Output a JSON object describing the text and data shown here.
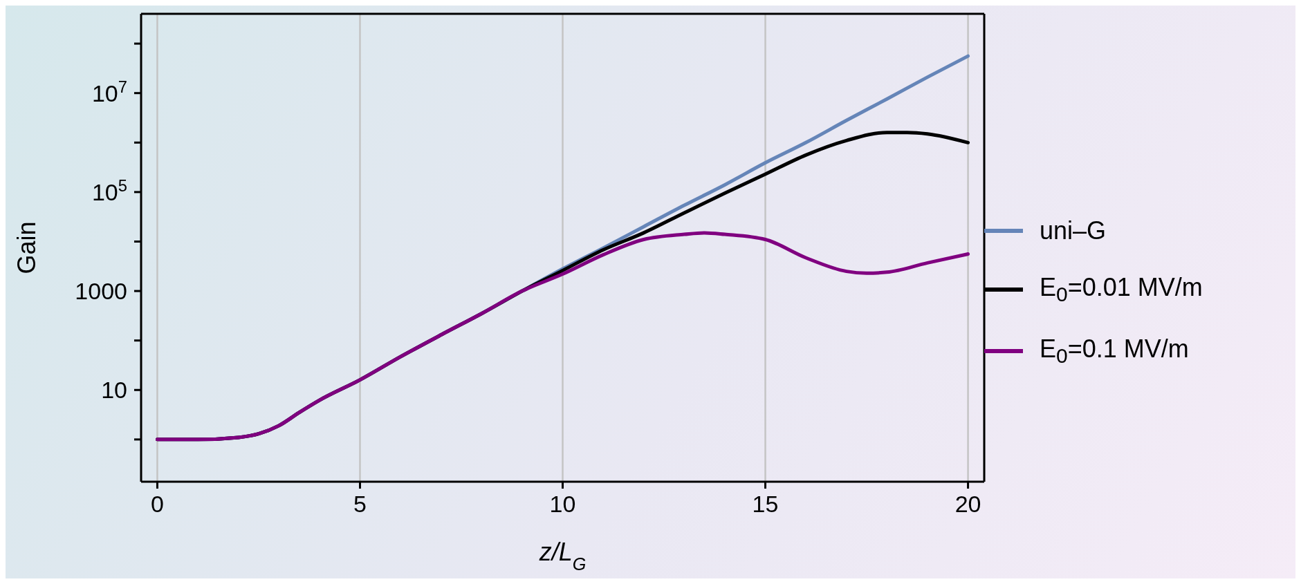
{
  "chart_data": {
    "type": "line",
    "xlabel": "z/L$_{G}$",
    "ylabel": "Gain",
    "log": "y",
    "grid": "x",
    "legend": "right",
    "marker": "none",
    "line_style": "solid",
    "xlim": [
      -0.4,
      20.4
    ],
    "xticks": [
      0,
      5,
      10,
      15,
      20
    ],
    "ylim": [
      0.14,
      400000000
    ],
    "yticks": [
      {
        "value": 1,
        "label": null
      },
      {
        "value": 10,
        "label": "10"
      },
      {
        "value": 100,
        "label": null
      },
      {
        "value": 1000,
        "label": "1000"
      },
      {
        "value": 10000,
        "label": null
      },
      {
        "value": 100000,
        "label": "10$^{5}$"
      },
      {
        "value": 1000000,
        "label": null
      },
      {
        "value": 10000000,
        "label": "10$^{7}$"
      },
      {
        "value": 100000000,
        "label": null
      }
    ],
    "series": [
      {
        "name": "uni–G",
        "color": "#6585b8",
        "x": [
          0,
          1,
          2,
          2.5,
          3,
          3.5,
          4,
          5,
          6,
          7,
          8,
          9,
          10,
          11,
          12,
          13,
          14,
          15,
          16,
          17,
          18,
          19,
          20
        ],
        "values": [
          1,
          1,
          1.1,
          1.3,
          1.9,
          3.5,
          6.2,
          16,
          47,
          130,
          350,
          1000,
          2800,
          7400,
          20000,
          54000,
          140000,
          390000,
          1000000,
          2800000,
          7600000,
          21000000,
          56000000
        ]
      },
      {
        "name": "E$_{0}$=0.01 MV/m",
        "color": "#000000",
        "x": [
          0,
          1,
          2,
          2.5,
          3,
          3.5,
          4,
          5,
          6,
          7,
          8,
          9,
          10,
          11,
          12,
          13,
          14,
          15,
          16,
          17,
          18,
          18.5,
          19,
          20
        ],
        "values": [
          1,
          1,
          1.1,
          1.3,
          1.9,
          3.5,
          6.2,
          16,
          47,
          130,
          350,
          1000,
          2600,
          6800,
          15000,
          38000,
          95000,
          230000,
          560000,
          1100000,
          1600000,
          1600000,
          1500000,
          1000000
        ]
      },
      {
        "name": "E$_{0}$=0.1 MV/m",
        "color": "#800080",
        "x": [
          0,
          1,
          2,
          2.5,
          3,
          3.5,
          4,
          5,
          6,
          7,
          8,
          9,
          10,
          11,
          12,
          13,
          13.5,
          14,
          15,
          16,
          17,
          17.5,
          18,
          19,
          20
        ],
        "values": [
          1,
          1,
          1.1,
          1.3,
          1.9,
          3.5,
          6.2,
          16,
          47,
          130,
          350,
          1000,
          2200,
          5400,
          11000,
          14000,
          15000,
          14000,
          11000,
          4700,
          2500,
          2300,
          2400,
          3700,
          5600
        ]
      }
    ]
  }
}
